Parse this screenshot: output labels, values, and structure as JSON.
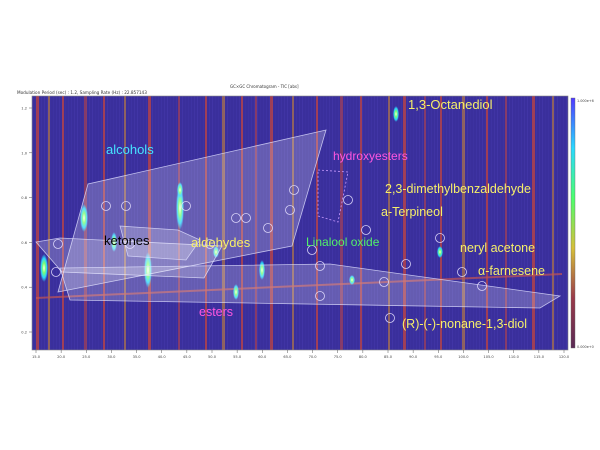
{
  "header": {
    "window_title": "GC×GC Chromatogram - TIC [abs]",
    "info_line": "Modulation Period (sec) : 1.2, Sampling Rate (Hz) : 22.857143"
  },
  "colors": {
    "background": "#3a2f9c",
    "text_yellow": "#f6ef6a",
    "text_cyan": "#46e3ff",
    "text_magenta": "#ff56e0",
    "text_green": "#52f06a",
    "text_black": "#000000",
    "region_fill": "#ffffff"
  },
  "chart_data": {
    "type": "heatmap",
    "title": "",
    "xlabel": "",
    "ylabel": "",
    "colorbar": {
      "top_label": "1.000e+6",
      "bottom_label": "0.000e+0",
      "colors": [
        "#4f39ff",
        "#2ad8ff",
        "#4cff6e",
        "#d6c03a",
        "#9a3a4a",
        "#5a2a55"
      ]
    },
    "x_ticks": [
      "15.0",
      "20.0",
      "25.0",
      "30.0",
      "35.0",
      "40.0",
      "45.0",
      "50.0",
      "55.0",
      "60.0",
      "65.0",
      "70.0",
      "75.0",
      "80.0",
      "85.0",
      "90.0",
      "95.0",
      "100.0",
      "105.0",
      "110.0",
      "115.0",
      "120.0"
    ],
    "y_ticks": [
      "1.2",
      "1.0",
      "0.8",
      "0.6",
      "0.4",
      "0.2"
    ],
    "compound_labels": [
      {
        "text": "1,3-Octanediol",
        "color": "yellow"
      },
      {
        "text": "hydroxyesters",
        "color": "magenta"
      },
      {
        "text": "2,3-dimethylbenzaldehyde",
        "color": "yellow"
      },
      {
        "text": "a-Terpineol",
        "color": "yellow"
      },
      {
        "text": "Linalool oxide",
        "color": "green"
      },
      {
        "text": "neryl acetone",
        "color": "yellow"
      },
      {
        "text": "α-farnesene",
        "color": "yellow"
      },
      {
        "text": "(R)-(-)-nonane-1,3-diol",
        "color": "yellow"
      }
    ],
    "class_labels": [
      {
        "text": "alcohols",
        "color": "cyan"
      },
      {
        "text": "ketones",
        "color": "black"
      },
      {
        "text": "aldehydes",
        "color": "yellow"
      },
      {
        "text": "esters",
        "color": "magenta"
      }
    ]
  }
}
